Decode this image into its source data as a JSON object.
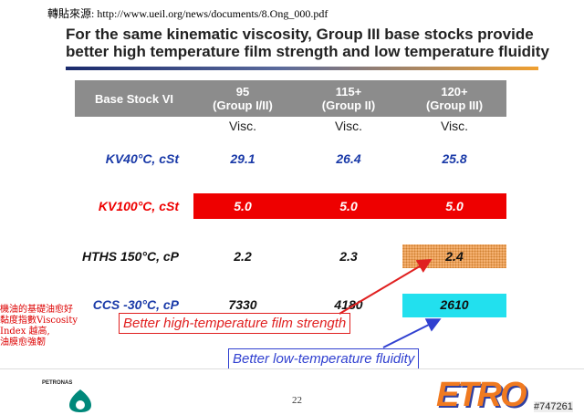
{
  "source": "轉貼來源: http://www.ueil.org/news/documents/8.Ong_000.pdf",
  "title": [
    "For the same kinematic viscosity, Group III base stocks provide",
    "better high temperature film strength and low temperature fluidity"
  ],
  "table": {
    "header": [
      [
        "Base Stock VI"
      ],
      [
        "95",
        "(Group I/II)"
      ],
      [
        "115+",
        "(Group II)"
      ],
      [
        "120+",
        "(Group III)"
      ]
    ],
    "subheader": [
      "Visc.",
      "Visc.",
      "Visc."
    ],
    "rows": [
      [
        "KV40°C, cSt",
        "29.1",
        "26.4",
        "25.8"
      ],
      [
        "KV100°C, cSt",
        "5.0",
        "5.0",
        "5.0"
      ],
      [
        "HTHS 150°C, cP",
        "2.2",
        "2.3",
        "2.4"
      ],
      [
        "CCS -30°C, cP",
        "7330",
        "4180",
        "2610"
      ]
    ]
  },
  "annotations": [
    "Better high-temperature film strength",
    "Better low-temperature fluidity"
  ],
  "side_note": [
    "機油的基礎油愈好",
    "黏度指數Viscosity",
    "Index 越高,",
    "油膜愈強韌"
  ],
  "footer": {
    "brand": "PETRONAS",
    "page": "22",
    "logo": "ETRO",
    "watermark": "#747261"
  }
}
